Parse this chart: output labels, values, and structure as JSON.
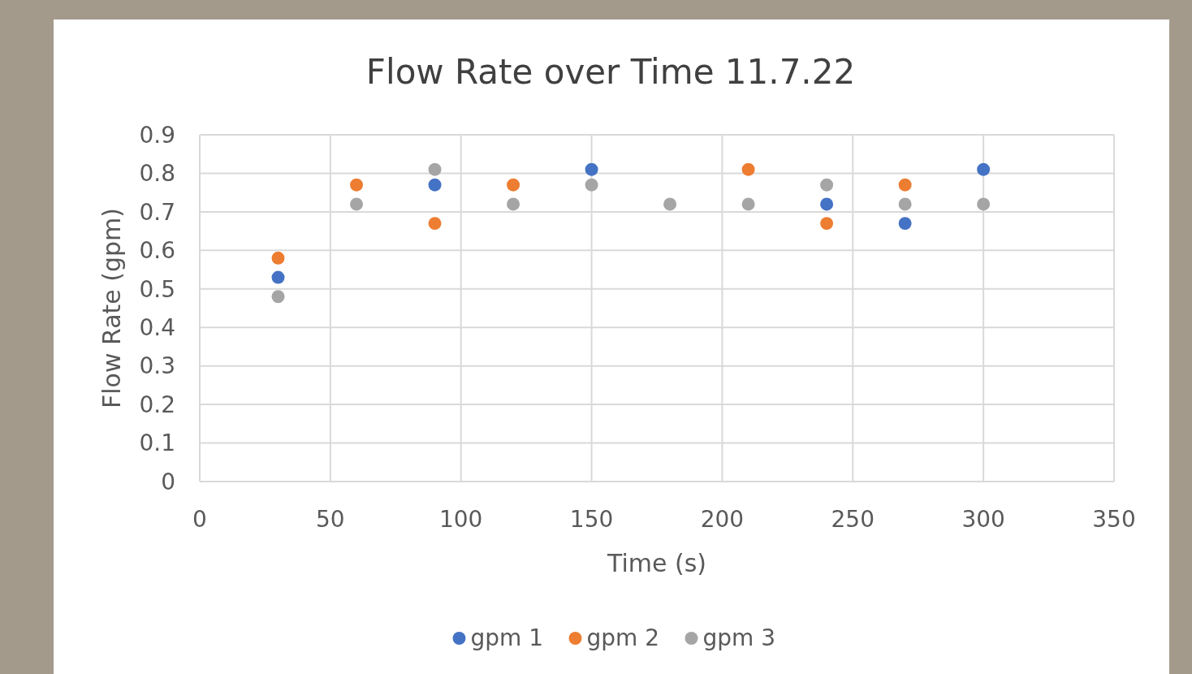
{
  "chart_data": {
    "type": "scatter",
    "title": "Flow Rate over Time 11.7.22",
    "xlabel": "Time (s)",
    "ylabel": "Flow Rate (gpm)",
    "x": [
      30,
      60,
      90,
      120,
      150,
      180,
      210,
      240,
      270,
      300
    ],
    "series": [
      {
        "name": "gpm 1",
        "color": "#4472c4",
        "values": [
          0.53,
          null,
          0.77,
          null,
          0.81,
          null,
          null,
          0.72,
          0.67,
          0.81
        ]
      },
      {
        "name": "gpm 2",
        "color": "#ed7d31",
        "values": [
          0.58,
          0.77,
          0.67,
          0.77,
          null,
          null,
          0.81,
          0.67,
          0.77,
          null
        ]
      },
      {
        "name": "gpm 3",
        "color": "#a5a5a5",
        "values": [
          0.48,
          0.72,
          0.81,
          0.72,
          0.77,
          0.72,
          0.72,
          0.77,
          0.72,
          0.72
        ]
      }
    ],
    "xlim": [
      0,
      350
    ],
    "xticks": [
      0,
      50,
      100,
      150,
      200,
      250,
      300,
      350
    ],
    "ylim": [
      0,
      0.9
    ],
    "yticks": [
      0,
      0.1,
      0.2,
      0.3,
      0.4,
      0.5,
      0.6,
      0.7,
      0.8,
      0.9
    ],
    "grid": true,
    "legend": "bottom",
    "marker": "circle"
  }
}
